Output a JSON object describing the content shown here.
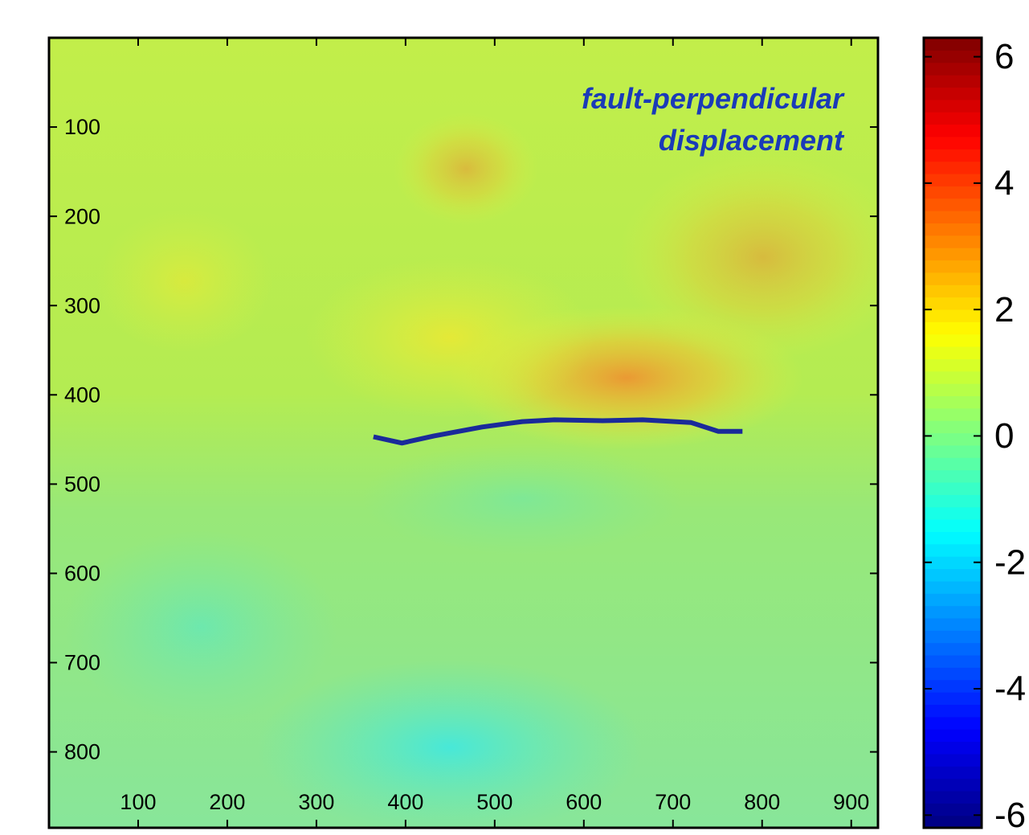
{
  "chart_data": {
    "type": "heatmap",
    "annotation": [
      "fault-perpendicular",
      "displacement"
    ],
    "xlim": [
      0,
      930
    ],
    "ylim": [
      0,
      885
    ],
    "y_inverted": true,
    "xticks": [
      100,
      200,
      300,
      400,
      500,
      600,
      700,
      800,
      900
    ],
    "yticks": [
      100,
      200,
      300,
      400,
      500,
      600,
      700,
      800
    ],
    "colorbar": {
      "colormap": "jet",
      "clim": [
        -6.2,
        6.3
      ],
      "ticks": [
        6,
        4,
        2,
        0,
        -2,
        -4,
        -6
      ]
    },
    "line": {
      "color": "#1a2a9a",
      "x": [
        364,
        396,
        432,
        486,
        531,
        567,
        621,
        666,
        720,
        751,
        778
      ],
      "y": [
        447,
        454,
        446,
        436,
        430,
        428,
        429,
        428,
        431,
        441,
        441
      ]
    }
  }
}
